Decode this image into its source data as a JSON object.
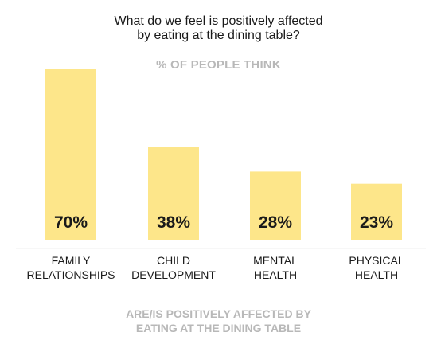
{
  "chart_data": {
    "type": "bar",
    "title_lines": [
      "What do we feel is positively affected",
      "by eating at the dining table?"
    ],
    "subtitle": "% OF PEOPLE THINK",
    "categories": [
      [
        "FAMILY",
        "RELATIONSHIPS"
      ],
      [
        "CHILD",
        "DEVELOPMENT"
      ],
      [
        "MENTAL",
        "HEALTH"
      ],
      [
        "PHYSICAL",
        "HEALTH"
      ]
    ],
    "values": [
      70,
      38,
      28,
      23
    ],
    "value_labels": [
      "70%",
      "38%",
      "28%",
      "23%"
    ],
    "footer_lines": [
      "ARE/IS POSITIVELY AFFECTED BY",
      "EATING AT THE DINING TABLE"
    ],
    "ylim": [
      0,
      100
    ],
    "bar_color": "#fde68a",
    "label_color": "#1a1a1a",
    "muted_color": "#b8b8b8"
  }
}
